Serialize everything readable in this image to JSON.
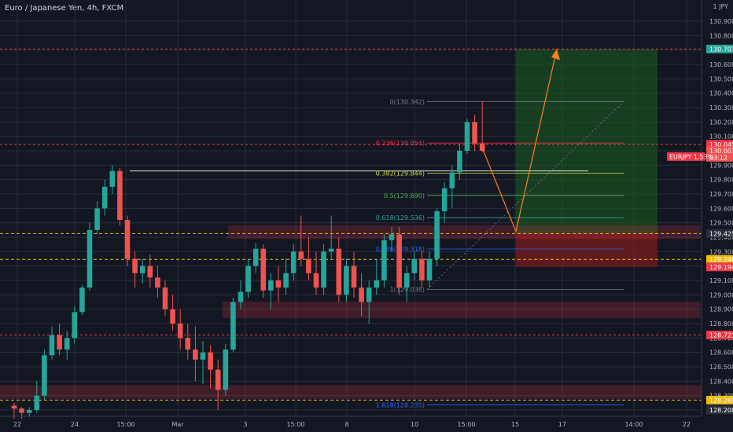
{
  "header": {
    "title": "Euro / Japanese Yen, 4h, FXCM"
  },
  "axis": {
    "currency": "JPY",
    "currency_prefix": "1",
    "y_labels": [
      "130.900",
      "130.800",
      "130.700",
      "130.600",
      "130.500",
      "130.400",
      "130.300",
      "130.200",
      "130.100",
      "130.000",
      "129.900",
      "129.800",
      "129.700",
      "129.600",
      "129.500",
      "129.400",
      "129.300",
      "129.200",
      "129.100",
      "129.000",
      "128.900",
      "128.800",
      "128.700",
      "128.600",
      "128.500",
      "128.400",
      "128.300",
      "128.200"
    ],
    "x_labels": [
      "22",
      "24",
      "15:00",
      "Mar",
      "3",
      "15:00",
      "8",
      "10",
      "15:00",
      "15",
      "17",
      "14:00",
      "22"
    ]
  },
  "price_tags": [
    {
      "label": "130.707",
      "color": "#26a69a",
      "text_color": "#ffffff"
    },
    {
      "label": "130.045",
      "color": "#f23645",
      "text_color": "#ffffff"
    },
    {
      "label": "130.001",
      "color": "#ef5350",
      "text_color": "#ffffff"
    },
    {
      "label": "03:12",
      "color": "#ef5350",
      "text_color": "#ffffff"
    },
    {
      "label": "129.425",
      "color": "#2a2e39",
      "text_color": "#ffffff"
    },
    {
      "label": "129.246",
      "color": "#f0b90b",
      "text_color": "#131722"
    },
    {
      "label": "129.194",
      "color": "#f23645",
      "text_color": "#ffffff"
    },
    {
      "label": "128.721",
      "color": "#f23645",
      "text_color": "#ffffff"
    },
    {
      "label": "128.269",
      "color": "#f0b90b",
      "text_color": "#131722"
    },
    {
      "label": "128.200",
      "color": "#2a2e39",
      "text_color": "#b2b5be"
    }
  ],
  "symbol_badge": {
    "label": "EURJPY 1.53%",
    "color": "#f23645"
  },
  "fib_levels": [
    {
      "label": "0(130.342)",
      "color": "#787b86"
    },
    {
      "label": "0.236(130.054)",
      "color": "#f23645"
    },
    {
      "label": "0.382(129.844)",
      "color": "#cddc39"
    },
    {
      "label": "0.5(129.690)",
      "color": "#4caf50"
    },
    {
      "label": "0.618(129.536)",
      "color": "#26a69a"
    },
    {
      "label": "0.786(129.318)",
      "color": "#2962ff"
    },
    {
      "label": "1(129.038)",
      "color": "#787b86"
    },
    {
      "label": "1.618(128.235)",
      "color": "#2962ff"
    }
  ],
  "colors": {
    "up": "#26a69a",
    "down": "#ef5350",
    "grid": "#2a2e39",
    "zone": "#f23645",
    "target_zone": "#1b5e20",
    "stop_zone": "#7f1d1d",
    "projection": "#ff7f27"
  },
  "chart_data": {
    "type": "candlestick",
    "title": "Euro / Japanese Yen, 4h, FXCM",
    "ylim": [
      128.15,
      131.05
    ],
    "candles": [
      [
        128.23,
        128.25,
        128.14,
        128.21
      ],
      [
        128.21,
        128.22,
        128.14,
        128.18
      ],
      [
        128.18,
        128.22,
        128.15,
        128.2
      ],
      [
        128.2,
        128.4,
        128.18,
        128.3
      ],
      [
        128.3,
        128.62,
        128.27,
        128.58
      ],
      [
        128.58,
        128.78,
        128.55,
        128.72
      ],
      [
        128.72,
        128.8,
        128.58,
        128.62
      ],
      [
        128.62,
        128.75,
        128.55,
        128.7
      ],
      [
        128.7,
        128.92,
        128.66,
        128.88
      ],
      [
        128.88,
        129.07,
        128.86,
        129.05
      ],
      [
        129.05,
        129.5,
        129.03,
        129.45
      ],
      [
        129.45,
        129.65,
        129.42,
        129.6
      ],
      [
        129.6,
        129.8,
        129.55,
        129.75
      ],
      [
        129.75,
        129.9,
        129.7,
        129.86
      ],
      [
        129.86,
        129.88,
        129.48,
        129.52
      ],
      [
        129.52,
        129.55,
        129.2,
        129.25
      ],
      [
        129.25,
        129.3,
        129.05,
        129.15
      ],
      [
        129.15,
        129.25,
        129.08,
        129.2
      ],
      [
        129.2,
        129.28,
        129.05,
        129.12
      ],
      [
        129.12,
        129.2,
        128.98,
        129.05
      ],
      [
        129.05,
        129.1,
        128.85,
        128.9
      ],
      [
        128.9,
        129.0,
        128.75,
        128.8
      ],
      [
        128.8,
        128.9,
        128.62,
        128.7
      ],
      [
        128.7,
        128.8,
        128.55,
        128.62
      ],
      [
        128.62,
        128.78,
        128.4,
        128.55
      ],
      [
        128.55,
        128.68,
        128.38,
        128.6
      ],
      [
        128.6,
        128.65,
        128.35,
        128.48
      ],
      [
        128.48,
        128.55,
        128.2,
        128.34
      ],
      [
        128.34,
        128.66,
        128.3,
        128.62
      ],
      [
        128.62,
        128.98,
        128.6,
        128.95
      ],
      [
        128.95,
        129.1,
        128.9,
        129.02
      ],
      [
        129.02,
        129.25,
        128.98,
        129.2
      ],
      [
        129.2,
        129.36,
        129.15,
        129.32
      ],
      [
        129.32,
        129.35,
        128.98,
        129.03
      ],
      [
        129.03,
        129.15,
        128.9,
        129.1
      ],
      [
        129.1,
        129.2,
        128.95,
        129.05
      ],
      [
        129.05,
        129.25,
        129.0,
        129.15
      ],
      [
        129.15,
        129.35,
        129.1,
        129.3
      ],
      [
        129.3,
        129.55,
        129.2,
        129.25
      ],
      [
        129.25,
        129.4,
        129.1,
        129.15
      ],
      [
        129.15,
        129.3,
        129.0,
        129.05
      ],
      [
        129.05,
        129.35,
        129.0,
        129.3
      ],
      [
        129.3,
        129.55,
        129.25,
        129.32
      ],
      [
        129.32,
        129.4,
        128.95,
        129.0
      ],
      [
        129.0,
        129.25,
        128.95,
        129.2
      ],
      [
        129.2,
        129.3,
        128.98,
        129.05
      ],
      [
        129.05,
        129.15,
        128.85,
        128.95
      ],
      [
        128.95,
        129.1,
        128.8,
        129.05
      ],
      [
        129.05,
        129.25,
        129.0,
        129.1
      ],
      [
        129.1,
        129.42,
        129.05,
        129.38
      ],
      [
        129.38,
        129.47,
        129.3,
        129.42
      ],
      [
        129.42,
        129.47,
        129.0,
        129.05
      ],
      [
        129.05,
        129.2,
        128.95,
        129.15
      ],
      [
        129.15,
        129.3,
        129.1,
        129.25
      ],
      [
        129.25,
        129.3,
        129.05,
        129.1
      ],
      [
        129.1,
        129.3,
        129.05,
        129.25
      ],
      [
        129.25,
        129.6,
        129.2,
        129.58
      ],
      [
        129.58,
        129.78,
        129.5,
        129.74
      ],
      [
        129.74,
        129.9,
        129.6,
        129.85
      ],
      [
        129.85,
        130.05,
        129.8,
        130.0
      ],
      [
        130.0,
        130.22,
        129.98,
        130.2
      ],
      [
        130.2,
        130.25,
        130.0,
        130.05
      ],
      [
        130.05,
        130.34,
        129.99,
        130.0
      ]
    ]
  }
}
